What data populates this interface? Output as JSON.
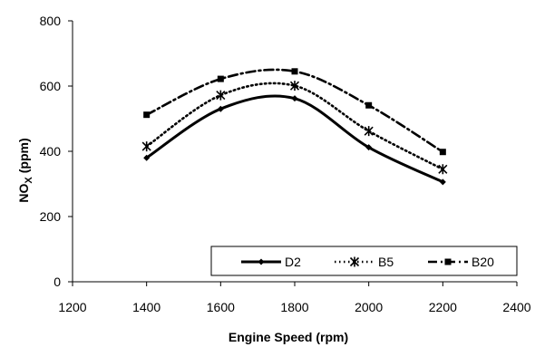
{
  "chart_data": {
    "type": "line",
    "title": "",
    "xlabel": "Engine Speed (rpm)",
    "ylabel": "NO",
    "ylabel_subscript": "X",
    "ylabel_unit": "(ppm)",
    "xlim": [
      1200,
      2400
    ],
    "ylim": [
      0,
      800
    ],
    "x_ticks": [
      1200,
      1400,
      1600,
      1800,
      2000,
      2200,
      2400
    ],
    "y_ticks": [
      0,
      200,
      400,
      600,
      800
    ],
    "grid": false,
    "legend_position": "bottom-right",
    "x": [
      1400,
      1600,
      1800,
      2000,
      2200
    ],
    "series": [
      {
        "name": "D2",
        "values": [
          380,
          530,
          562,
          412,
          306
        ],
        "color": "#000000",
        "line_style": "solid",
        "marker": "diamond"
      },
      {
        "name": "B5",
        "values": [
          415,
          572,
          601,
          462,
          345
        ],
        "color": "#000000",
        "line_style": "dotted",
        "marker": "asterisk"
      },
      {
        "name": "B20",
        "values": [
          512,
          622,
          645,
          541,
          398
        ],
        "color": "#000000",
        "line_style": "dash-dot",
        "marker": "square"
      }
    ]
  }
}
